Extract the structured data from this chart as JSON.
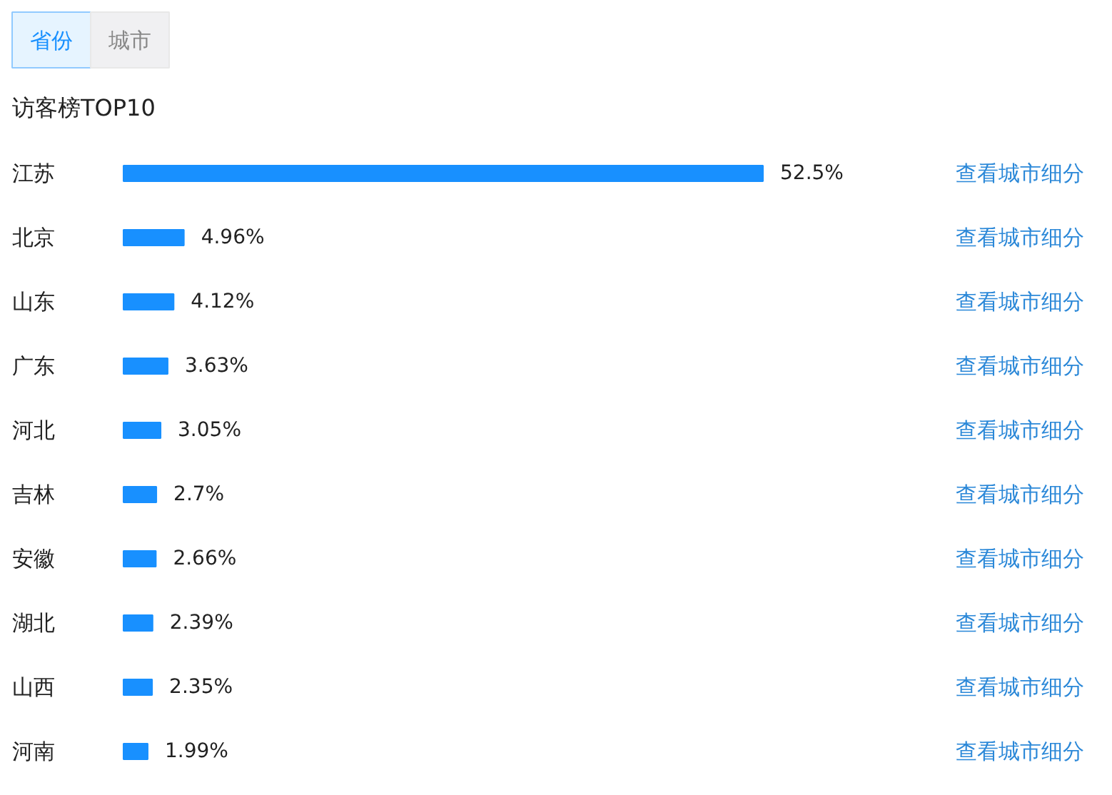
{
  "chart_data": {
    "type": "bar",
    "orientation": "horizontal",
    "title": "访客榜TOP10",
    "categories": [
      "江苏",
      "北京",
      "山东",
      "广东",
      "河北",
      "吉林",
      "安徽",
      "湖北",
      "山西",
      "河南"
    ],
    "values": [
      52.5,
      4.96,
      4.12,
      3.63,
      3.05,
      2.7,
      2.66,
      2.39,
      2.35,
      1.99
    ],
    "value_labels": [
      "52.5%",
      "4.96%",
      "4.12%",
      "3.63%",
      "3.05%",
      "2.7%",
      "2.66%",
      "2.39%",
      "2.35%",
      "1.99%"
    ],
    "color": "#1890ff",
    "annotations": [
      "省份",
      "城市",
      "查看城市细分",
      "查看城市细分",
      "查看城市细分",
      "查看城市细分",
      "查看城市细分",
      "查看城市细分",
      "查看城市细分",
      "查看城市细分",
      "查看城市细分",
      "查看城市细分"
    ]
  }
}
